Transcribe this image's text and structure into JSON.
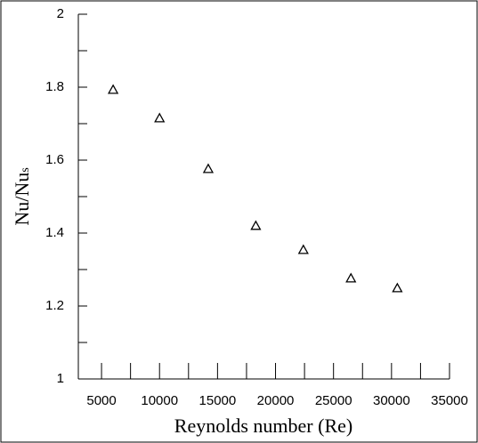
{
  "chart_data": {
    "type": "scatter",
    "xlabel": "Reynolds number (Re)",
    "ylabel": "Nu/Nu",
    "ylabel_sub": "s",
    "x": [
      6000,
      10000,
      14200,
      18300,
      22400,
      26500,
      30500
    ],
    "series": [
      {
        "color": "#000000",
        "marker": "triangle",
        "values": [
          1.793,
          1.715,
          1.576,
          1.42,
          1.354,
          1.276,
          1.249
        ]
      }
    ],
    "xlim": [
      3000,
      35000
    ],
    "ylim": [
      1,
      2
    ],
    "xticks": [
      5000,
      10000,
      15000,
      20000,
      25000,
      30000,
      35000
    ],
    "xminor": [
      7500,
      12500,
      17500,
      22500,
      27500,
      32500
    ],
    "yticks": [
      1,
      1.2,
      1.4,
      1.6,
      1.8,
      2
    ],
    "yminor": [
      1.1,
      1.3,
      1.5,
      1.7,
      1.9
    ]
  }
}
